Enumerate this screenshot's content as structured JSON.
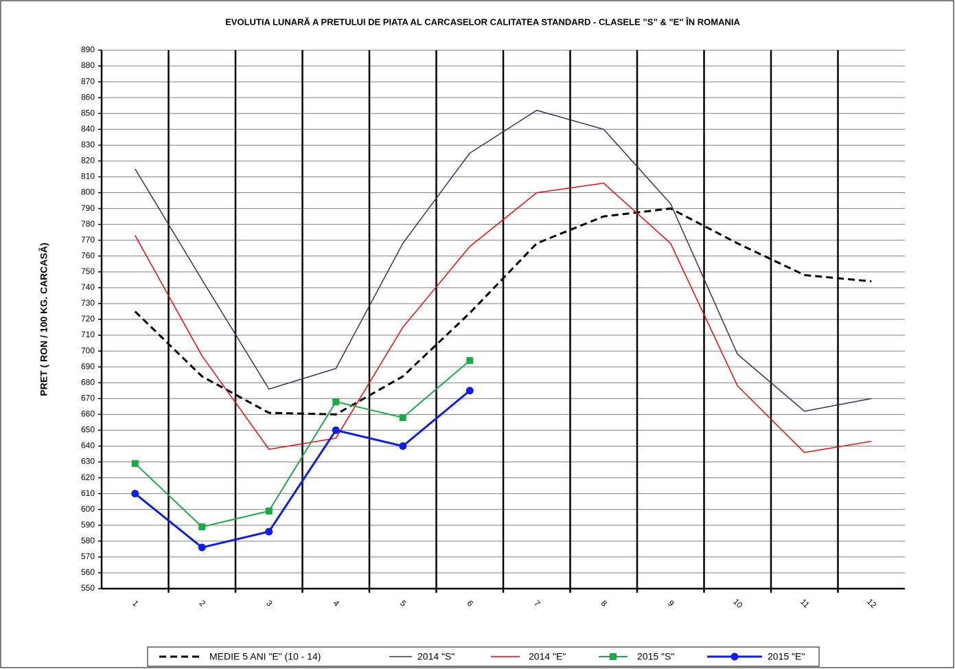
{
  "chart_data": {
    "type": "line",
    "title": "EVOLUTIA LUNARĂ A PRETULUI  DE PIATA  AL CARCASELOR CALITATEA STANDARD - CLASELE ”S” & \"E\"  ÎN ROMANIA",
    "y_label": "PRET ( RON / 100 KG. CARCASĂ)",
    "categories": [
      "1",
      "2",
      "3",
      "4",
      "5",
      "6",
      "7",
      "8",
      "9",
      "10",
      "11",
      "12"
    ],
    "series": [
      {
        "name": "MEDIE 5 ANI \"E\" (10 - 14)",
        "color": "#000000",
        "dash": true,
        "marker": null,
        "width": 3,
        "values": [
          725,
          684,
          661,
          660,
          684,
          724,
          768,
          785,
          790,
          768,
          748,
          744
        ]
      },
      {
        "name": "2014 \"S\"",
        "color": "#3d2e5c",
        "dash": false,
        "marker": null,
        "width": 1.5,
        "values": [
          815,
          745,
          676,
          689,
          768,
          825,
          852,
          840,
          793,
          698,
          662,
          670
        ]
      },
      {
        "name": "2014 \"E\"",
        "color": "#ff0000",
        "dash": false,
        "marker": null,
        "width": 1.5,
        "values": [
          773,
          697,
          638,
          645,
          715,
          766,
          800,
          806,
          768,
          678,
          636,
          643
        ]
      },
      {
        "name": "2015 \"S\"",
        "color": "#1aaa46",
        "dash": false,
        "marker": "square",
        "width": 2,
        "values": [
          629,
          589,
          599,
          668,
          658,
          694,
          null,
          null,
          null,
          null,
          null,
          null
        ]
      },
      {
        "name": "2015 \"E\"",
        "color": "#0a1eef",
        "dash": false,
        "marker": "circle",
        "width": 3,
        "values": [
          610,
          576,
          586,
          650,
          640,
          675,
          null,
          null,
          null,
          null,
          null,
          null
        ]
      }
    ],
    "ylim": [
      550,
      890
    ],
    "yticks": [
      550,
      560,
      570,
      580,
      590,
      600,
      610,
      620,
      630,
      640,
      650,
      660,
      670,
      680,
      690,
      700,
      710,
      720,
      730,
      740,
      750,
      760,
      770,
      780,
      790,
      800,
      810,
      820,
      830,
      840,
      850,
      860,
      870,
      880,
      890
    ],
    "grid": true,
    "legend": "bottom"
  }
}
